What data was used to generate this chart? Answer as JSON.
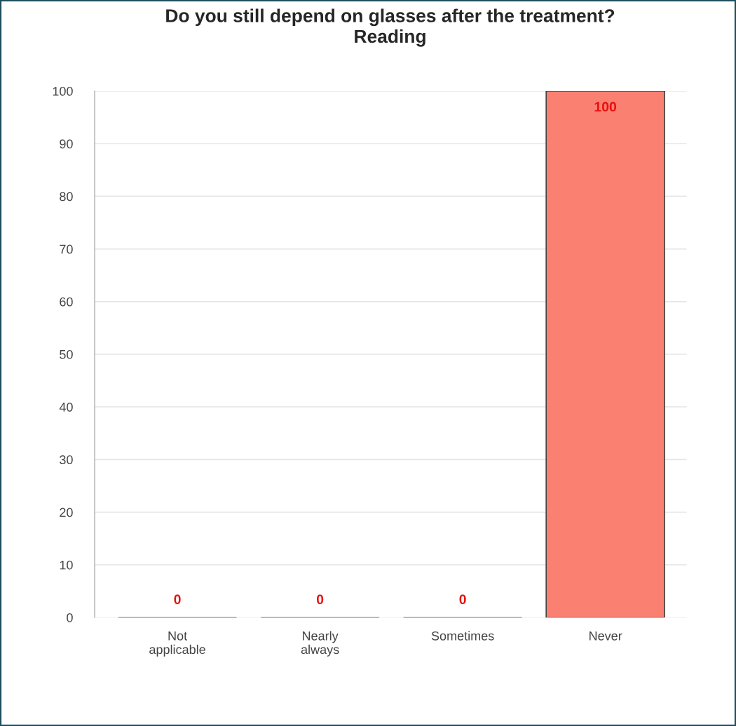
{
  "chart_data": {
    "type": "bar",
    "title": "Do you still depend on glasses after the treatment?\nReading",
    "categories": [
      "Not\napplicable",
      "Nearly\nalways",
      "Sometimes",
      "Never"
    ],
    "values": [
      0,
      0,
      0,
      100
    ],
    "color": "#fa8072",
    "ylim": [
      0,
      100
    ],
    "yticks": [
      0,
      10,
      20,
      30,
      40,
      50,
      60,
      70,
      80,
      90,
      100
    ],
    "grid": "y",
    "data_labels": true
  }
}
